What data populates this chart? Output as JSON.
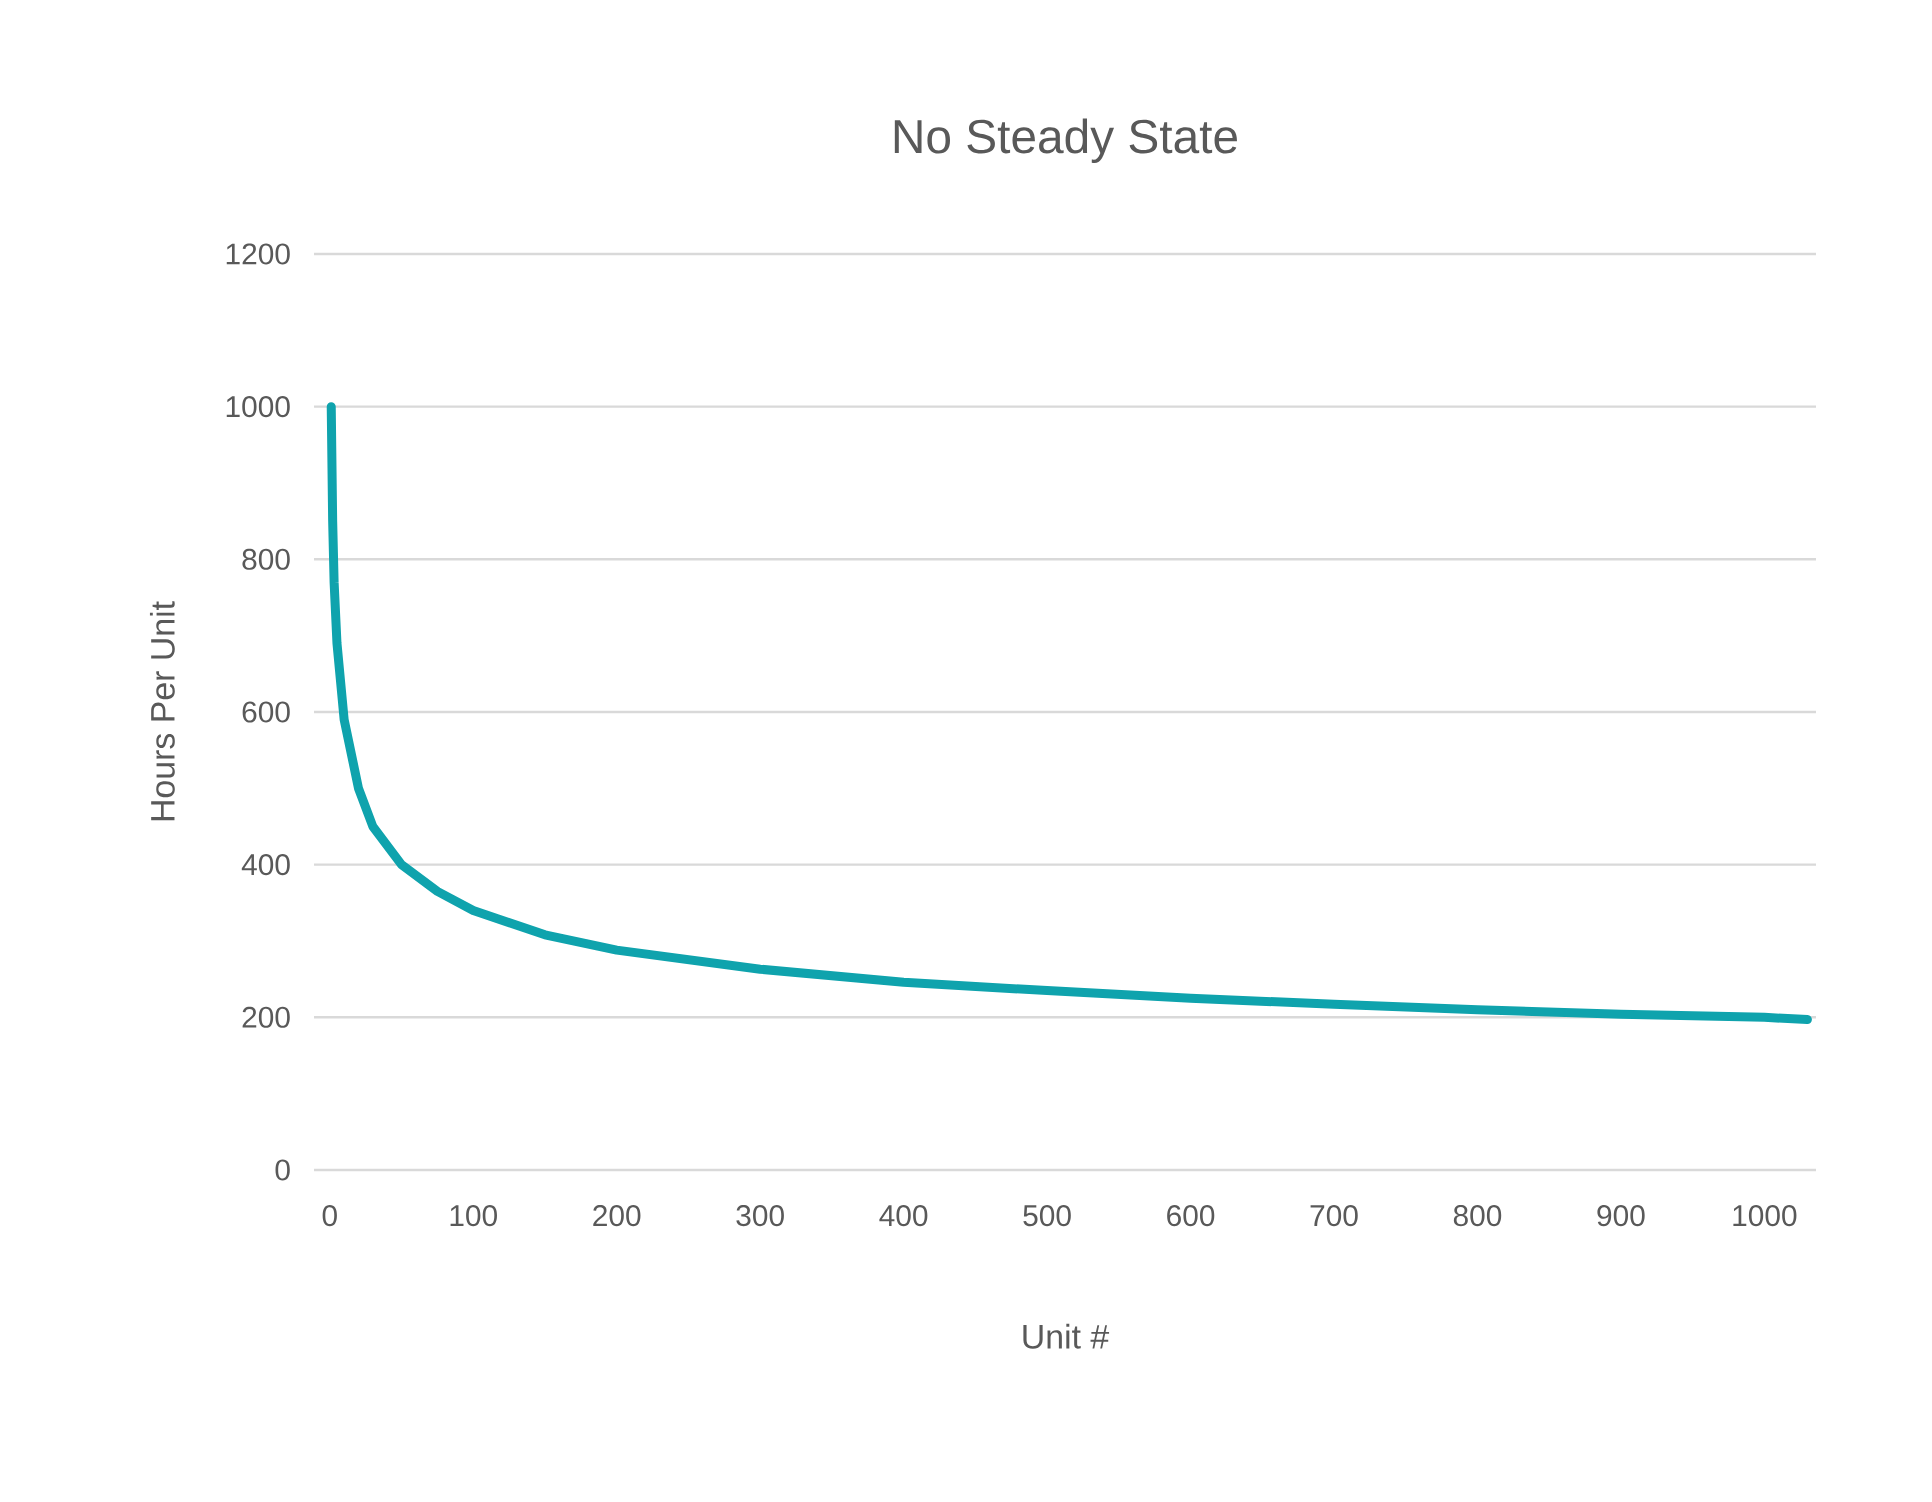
{
  "chart_data": {
    "type": "line",
    "title": "No Steady State",
    "xlabel": "Unit #",
    "ylabel": "Hours Per Unit",
    "xlim": [
      -11,
      1036
    ],
    "xticks": [
      0,
      100,
      200,
      300,
      400,
      500,
      600,
      700,
      800,
      900,
      1000
    ],
    "ylim": [
      0,
      1200
    ],
    "yticks": [
      0,
      200,
      400,
      600,
      800,
      1000,
      1200
    ],
    "grid": "y",
    "marker": "none",
    "line_style": "solid",
    "series": [
      {
        "color": "#0fa3ad",
        "x": [
          1,
          2,
          3,
          5,
          10,
          20,
          30,
          50,
          75,
          100,
          150,
          200,
          300,
          400,
          500,
          600,
          700,
          800,
          900,
          1000,
          1030
        ],
        "values": [
          1000,
          850,
          770,
          690,
          590,
          500,
          450,
          400,
          365,
          340,
          308,
          288,
          263,
          246,
          235,
          225,
          217,
          210,
          204,
          200,
          197
        ]
      }
    ]
  }
}
